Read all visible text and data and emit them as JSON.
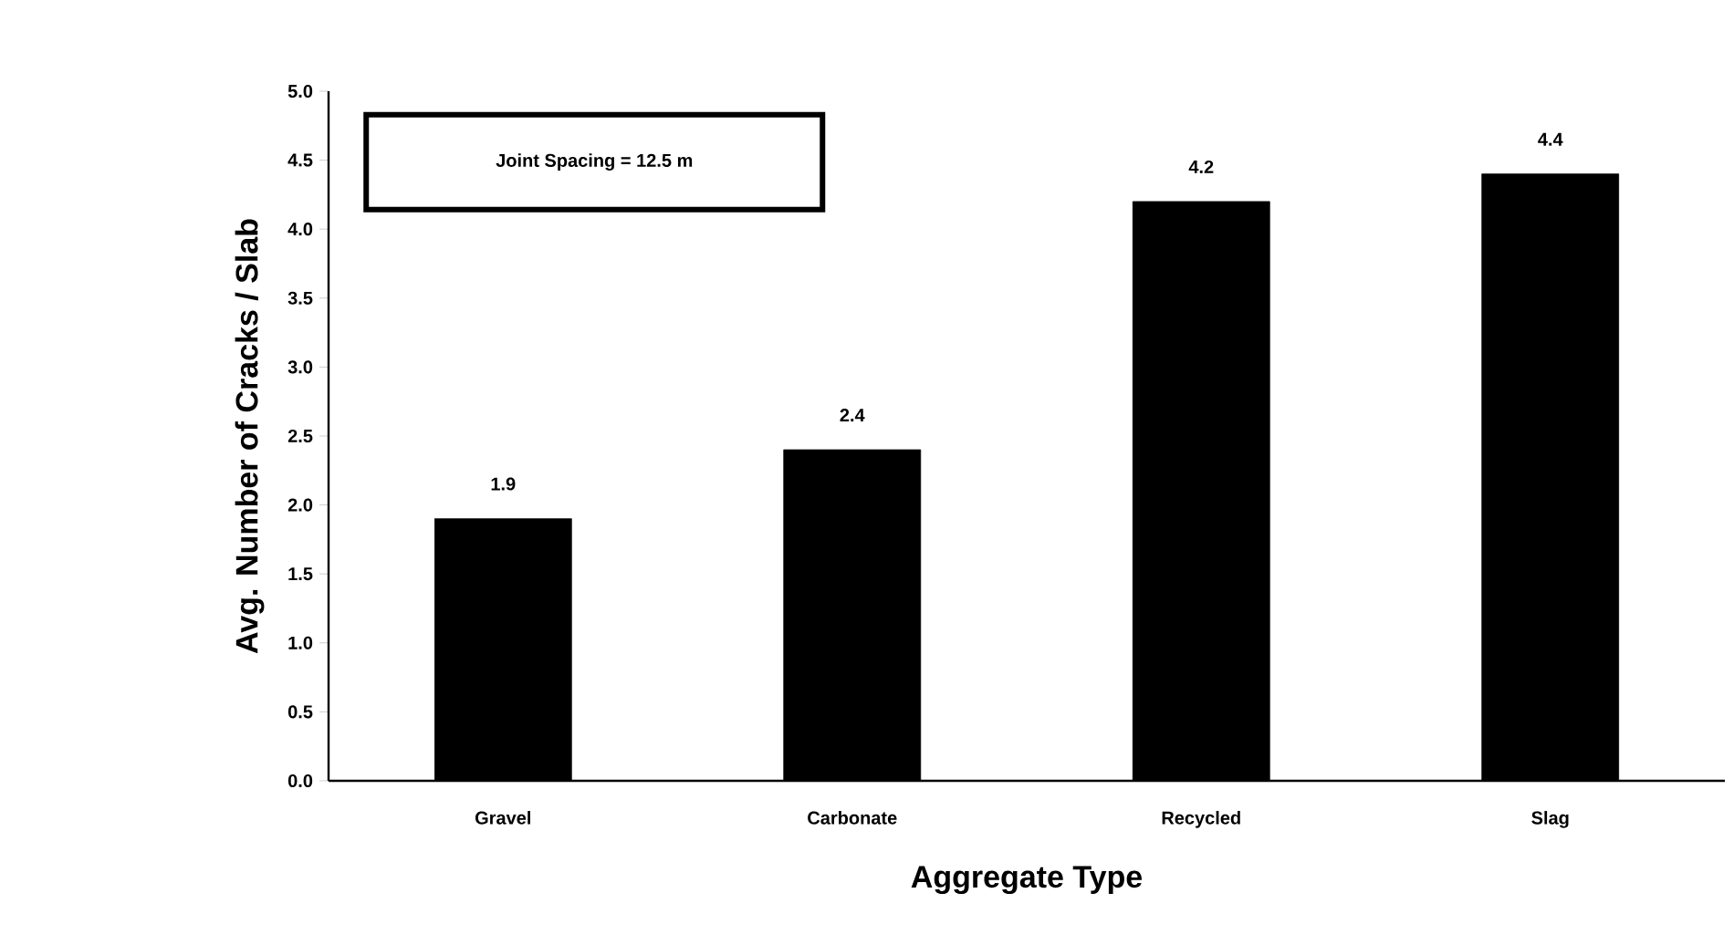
{
  "chart_data": {
    "type": "bar",
    "xlabel": "Aggregate Type",
    "ylabel": "Avg. Number of Cracks / Slab",
    "categories": [
      "Gravel",
      "Carbonate",
      "Recycled",
      "Slag"
    ],
    "values": [
      1.9,
      2.4,
      4.2,
      4.4
    ],
    "color": "#000000",
    "data_labels": true,
    "ylim": [
      0,
      5
    ],
    "yticks": [
      {
        "value": 0,
        "label": "0.0"
      },
      {
        "value": 0.5,
        "label": "0.5"
      },
      {
        "value": 1,
        "label": "1.0"
      },
      {
        "value": 1.5,
        "label": "1.5"
      },
      {
        "value": 2,
        "label": "2.0"
      },
      {
        "value": 2.5,
        "label": "2.5"
      },
      {
        "value": 3,
        "label": "3.0"
      },
      {
        "value": 3.5,
        "label": "3.5"
      },
      {
        "value": 4,
        "label": "4.0"
      },
      {
        "value": 4.5,
        "label": "4.5"
      },
      {
        "value": 5,
        "label": "5.0"
      }
    ],
    "grid": false,
    "annotations": [
      "Joint Spacing = 12.5 m"
    ]
  }
}
